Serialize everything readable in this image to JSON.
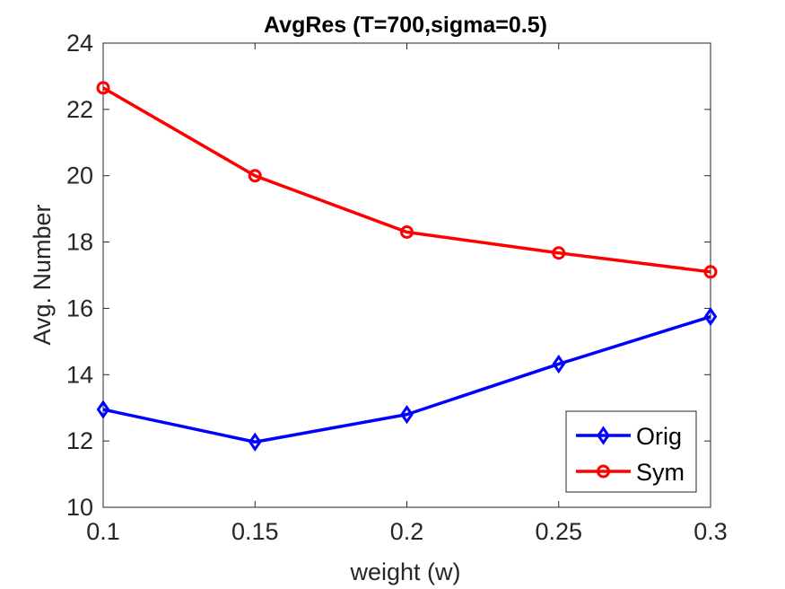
{
  "chart_data": {
    "type": "line",
    "title": "AvgRes (T=700,sigma=0.5)",
    "xlabel": "weight (w)",
    "ylabel": "Avg. Number",
    "x": [
      0.1,
      0.15,
      0.2,
      0.25,
      0.3
    ],
    "xlim": [
      0.1,
      0.3
    ],
    "ylim": [
      10,
      24
    ],
    "xticks": [
      "0.1",
      "0.15",
      "0.2",
      "0.25",
      "0.3"
    ],
    "yticks": [
      "10",
      "12",
      "14",
      "16",
      "18",
      "20",
      "22",
      "24"
    ],
    "grid": false,
    "legend_location": "bottom-right",
    "series": [
      {
        "name": "Orig",
        "values": [
          12.95,
          11.97,
          12.8,
          14.32,
          15.75
        ],
        "color": "#0000ff",
        "marker": "diamond"
      },
      {
        "name": "Sym",
        "values": [
          22.65,
          20.0,
          18.3,
          17.67,
          17.1
        ],
        "color": "#ff0000",
        "marker": "circle"
      }
    ]
  }
}
